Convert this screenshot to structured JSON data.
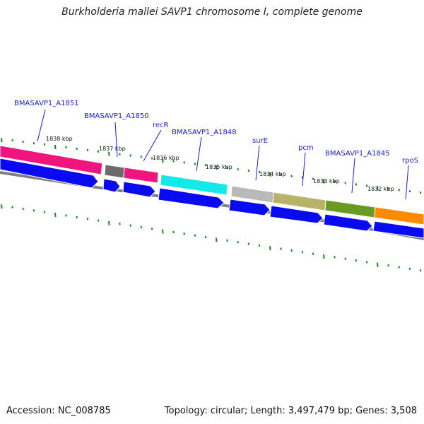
{
  "title": "Burkholderia mallei SAVP1 chromosome I, complete genome",
  "footer": {
    "accession": "Accession: NC_008785",
    "summary": "Topology: circular; Length: 3,497,479 bp; Genes: 3,508"
  },
  "colors": {
    "pink": "#f0157c",
    "gray_dark": "#6b6b6b",
    "cyan": "#14e8e8",
    "gray_light": "#b9b9b9",
    "khaki": "#b8b26a",
    "olive": "#6a9a22",
    "orange": "#ff8a00",
    "cds_blue": "#0a0af0",
    "tick_green": "#1a8a1a",
    "backbone": "#808080",
    "label_blue": "#1a1adb"
  },
  "tick_labels": [
    "1838 kbp",
    "1837 kbp",
    "1836 kbp",
    "1835 kbp",
    "1834 kbp",
    "1833 kbp",
    "1832 kbp"
  ],
  "gene_labels": [
    "BMASAVP1_A1851",
    "BMASAVP1_A1850",
    "recR",
    "BMASAVP1_A1848",
    "surE",
    "pcm",
    "BMASAVP1_A1845",
    "rpoS"
  ]
}
